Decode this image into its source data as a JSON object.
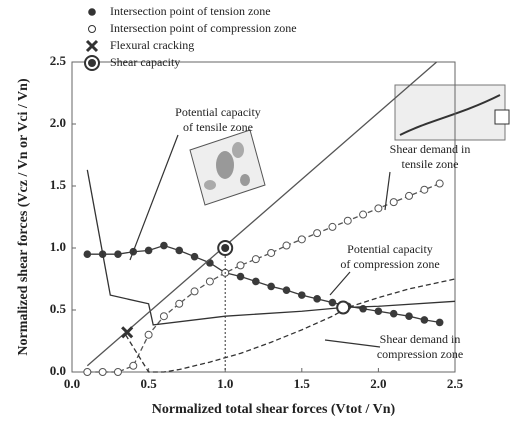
{
  "chart_data": {
    "type": "line",
    "xlabel": "Normalized total shear forces  (Vtot / Vn)",
    "ylabel": "Normalized shear forces (Vcz / Vn or Vci / Vn)",
    "xlim": [
      0,
      2.5
    ],
    "ylim": [
      0,
      2.5
    ],
    "xticks": [
      {
        "value": 0,
        "label": "0.0"
      },
      {
        "value": 0.5,
        "label": "0.5"
      },
      {
        "value": 1,
        "label": "1.0"
      },
      {
        "value": 1.5,
        "label": "1.5"
      },
      {
        "value": 2,
        "label": "2.0"
      },
      {
        "value": 2.5,
        "label": "2.5"
      }
    ],
    "yticks": [
      {
        "value": 0,
        "label": "0.0"
      },
      {
        "value": 0.5,
        "label": "0.5"
      },
      {
        "value": 1,
        "label": "1.0"
      },
      {
        "value": 1.5,
        "label": "1.5"
      },
      {
        "value": 2,
        "label": "2.0"
      },
      {
        "value": 2.5,
        "label": "2.5"
      }
    ],
    "series": [
      {
        "name": "Intersection point of tension zone",
        "color": "#3a3a3a",
        "marker": "filled",
        "x": [
          0.1,
          0.2,
          0.3,
          0.4,
          0.5,
          0.6,
          0.7,
          0.8,
          0.9,
          1.0,
          1.1,
          1.2,
          1.3,
          1.4,
          1.5,
          1.6,
          1.7,
          1.8,
          1.9,
          2.0,
          2.1,
          2.2,
          2.3,
          2.4
        ],
        "values": [
          0.95,
          0.95,
          0.95,
          0.97,
          0.98,
          1.02,
          0.98,
          0.93,
          0.88,
          0.8,
          0.77,
          0.73,
          0.69,
          0.66,
          0.62,
          0.59,
          0.56,
          0.53,
          0.51,
          0.49,
          0.47,
          0.45,
          0.42,
          0.4
        ]
      },
      {
        "color": "#555555",
        "marker": "open",
        "dash": true,
        "x": [
          0.1,
          0.2,
          0.3,
          0.4,
          0.5,
          0.6,
          0.7,
          0.8,
          0.9,
          1.0,
          1.1,
          1.2,
          1.3,
          1.4,
          1.5,
          1.6,
          1.7,
          1.8,
          1.9,
          2.0,
          2.1,
          2.2,
          2.3,
          2.4
        ],
        "values": [
          0,
          0,
          0,
          0.05,
          0.3,
          0.45,
          0.55,
          0.65,
          0.73,
          0.8,
          0.86,
          0.91,
          0.96,
          1.02,
          1.07,
          1.12,
          1.17,
          1.22,
          1.27,
          1.32,
          1.37,
          1.42,
          1.47,
          1.52
        ]
      },
      {
        "color": "#333333",
        "dash": true,
        "x": [
          0.35,
          0.5,
          0.6,
          0.7,
          0.9,
          1.1,
          1.3,
          1.5,
          1.7,
          1.8,
          2.0,
          2.2,
          2.5
        ],
        "values": [
          0.3,
          0,
          0,
          0.02,
          0.08,
          0.15,
          0.24,
          0.34,
          0.45,
          0.52,
          0.6,
          0.67,
          0.75
        ]
      },
      {
        "color": "#333333",
        "x": [
          0.1,
          0.25,
          0.5,
          0.53,
          1.0,
          1.5,
          1.77,
          2.0,
          2.5
        ],
        "values": [
          1.63,
          0.62,
          0.55,
          0.38,
          0.45,
          0.49,
          0.52,
          0.53,
          0.57
        ]
      },
      {
        "color": "#555555",
        "x": [
          0.1,
          2.38
        ],
        "values": [
          0.05,
          2.5
        ]
      }
    ],
    "points": [
      {
        "name": "Intersection point of compression zone",
        "marker": "open",
        "x": 1.77,
        "value": 0.52
      },
      {
        "name": "Flexural cracking",
        "marker": "cross",
        "x": 0.36,
        "value": 0.32
      },
      {
        "name": "Shear capacity",
        "marker": "target",
        "x": 1.0,
        "value": 1.0
      }
    ],
    "annotations": [
      [
        "Potential capacity",
        "of tensile zone"
      ],
      [
        "Shear demand in",
        "tensile zone"
      ],
      [
        "Potential capacity",
        "of compression zone"
      ],
      [
        "Shear demand in",
        "compression zone"
      ]
    ]
  }
}
